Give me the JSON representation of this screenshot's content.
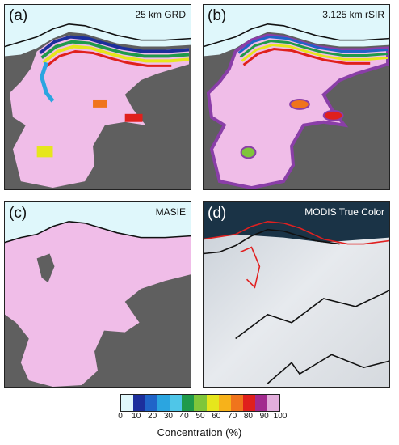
{
  "panels": {
    "a": {
      "label": "(a)",
      "title": "25 km GRD"
    },
    "b": {
      "label": "(b)",
      "title": "3.125 km rSIR"
    },
    "c": {
      "label": "(c)",
      "title": "MASIE"
    },
    "d": {
      "label": "(d)",
      "title": "MODIS True Color"
    }
  },
  "colorbar": {
    "title": "Concentration (%)",
    "tick_labels": [
      "0",
      "10",
      "20",
      "30",
      "40",
      "50",
      "60",
      "70",
      "80",
      "90",
      "100"
    ],
    "colors": [
      "#dff7fb",
      "#1c2f9c",
      "#2064c8",
      "#2ba5e0",
      "#4fc6e8",
      "#1f9a4a",
      "#7fc63a",
      "#e6e61c",
      "#f7b21a",
      "#f0741c",
      "#e0201c",
      "#a22a8e",
      "#e3aedc"
    ]
  },
  "map_colors": {
    "water": "#dff7fb",
    "land": "#5f5f5f",
    "ice": "#f0bde8",
    "ice_edge": "#8a3ea8",
    "modis_edge": "#e02020"
  }
}
